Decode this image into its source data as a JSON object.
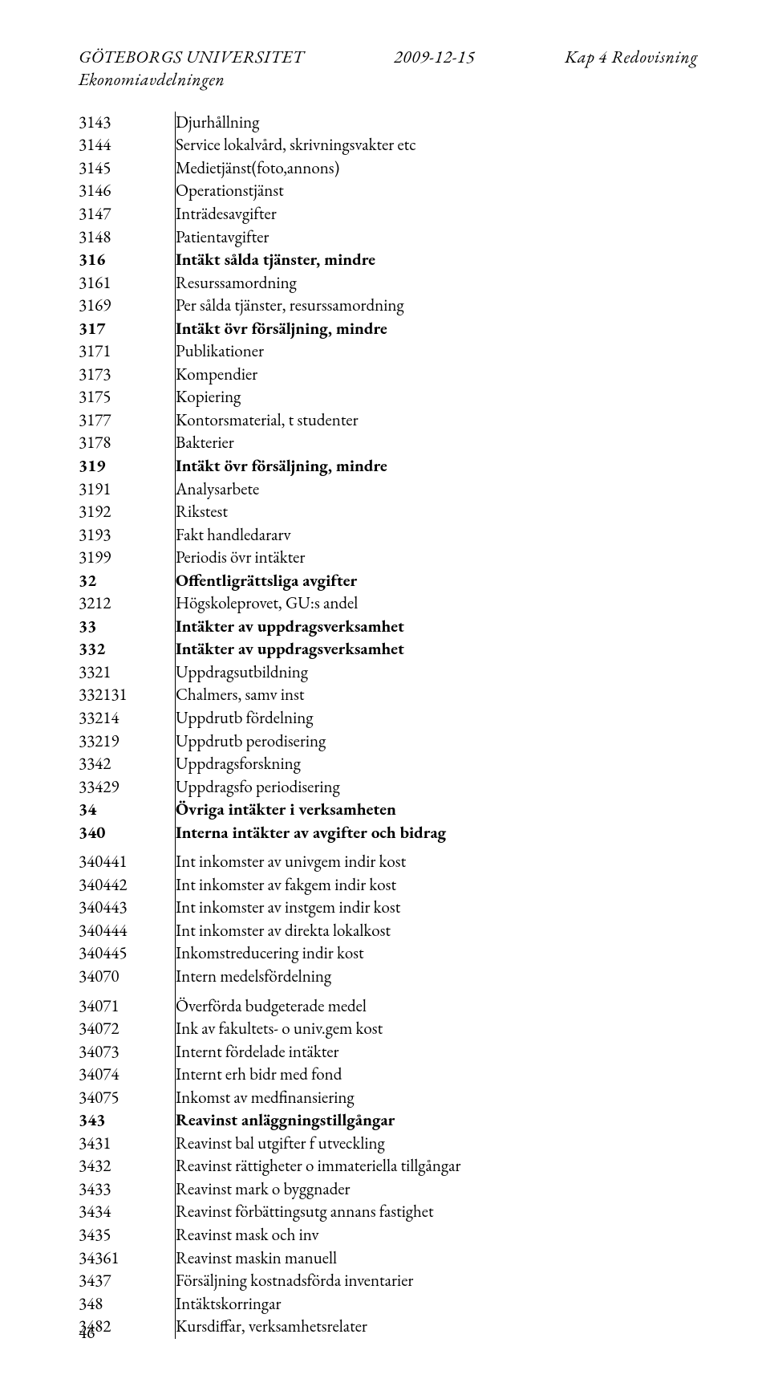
{
  "header": {
    "left_line1": "GÖTEBORGS UNIVERSITET",
    "left_line2": "Ekonomiavdelningen",
    "center": "2009-12-15",
    "right": "Kap 4 Redovisning"
  },
  "rows": [
    {
      "code": "3143",
      "label": "Djurhållning",
      "bold": false
    },
    {
      "code": "3144",
      "label": "Service lokalvård, skrivningsvakter etc",
      "bold": false
    },
    {
      "code": "3145",
      "label": "Medietjänst(foto,annons)",
      "bold": false
    },
    {
      "code": "3146",
      "label": "Operationstjänst",
      "bold": false
    },
    {
      "code": "3147",
      "label": "Inträdesavgifter",
      "bold": false
    },
    {
      "code": "3148",
      "label": "Patientavgifter",
      "bold": false
    },
    {
      "code": "316",
      "label": "Intäkt sålda tjänster, mindre",
      "bold": true
    },
    {
      "code": "3161",
      "label": "Resurssamordning",
      "bold": false
    },
    {
      "code": "3169",
      "label": "Per sålda tjänster, resurssamordning",
      "bold": false
    },
    {
      "code": "317",
      "label": "Intäkt övr försäljning, mindre",
      "bold": true
    },
    {
      "code": "3171",
      "label": "Publikationer",
      "bold": false
    },
    {
      "code": "3173",
      "label": "Kompendier",
      "bold": false
    },
    {
      "code": "3175",
      "label": "Kopiering",
      "bold": false
    },
    {
      "code": "3177",
      "label": "Kontorsmaterial, t studenter",
      "bold": false
    },
    {
      "code": "3178",
      "label": "Bakterier",
      "bold": false
    },
    {
      "code": "319",
      "label": "Intäkt övr försäljning, mindre",
      "bold": true
    },
    {
      "code": "3191",
      "label": "Analysarbete",
      "bold": false
    },
    {
      "code": "3192",
      "label": "Rikstest",
      "bold": false
    },
    {
      "code": "3193",
      "label": "Fakt handledararv",
      "bold": false
    },
    {
      "code": "3199",
      "label": "Periodis övr intäkter",
      "bold": false
    },
    {
      "code": "32",
      "label": "Offentligrättsliga avgifter",
      "bold": true
    },
    {
      "code": "3212",
      "label": "Högskoleprovet, GU:s andel",
      "bold": false
    },
    {
      "code": "33",
      "label": "Intäkter av uppdragsverksamhet",
      "bold": true
    },
    {
      "code": "332",
      "label": "Intäkter av uppdragsverksamhet",
      "bold": true
    },
    {
      "code": "3321",
      "label": "Uppdragsutbildning",
      "bold": false
    },
    {
      "code": "332131",
      "label": "Chalmers, samv inst",
      "bold": false
    },
    {
      "code": "33214",
      "label": "Uppdrutb fördelning",
      "bold": false
    },
    {
      "code": "33219",
      "label": "Uppdrutb perodisering",
      "bold": false
    },
    {
      "code": "3342",
      "label": "Uppdragsforskning",
      "bold": false
    },
    {
      "code": "33429",
      "label": "Uppdragsfo periodisering",
      "bold": false
    },
    {
      "code": "34",
      "label": "Övriga intäkter i verksamheten",
      "bold": true
    },
    {
      "code": "340",
      "label": "Interna intäkter av avgifter och bidrag",
      "bold": true,
      "gap_after": true
    },
    {
      "code": "340441",
      "label": "Int inkomster av univgem indir kost",
      "bold": false
    },
    {
      "code": "340442",
      "label": "Int inkomster av fakgem indir kost",
      "bold": false
    },
    {
      "code": "340443",
      "label": "Int inkomster av instgem indir kost",
      "bold": false
    },
    {
      "code": "340444",
      "label": "Int inkomster av direkta lokalkost",
      "bold": false
    },
    {
      "code": "340445",
      "label": "Inkomstreducering indir kost",
      "bold": false
    },
    {
      "code": "34070",
      "label": "Intern medelsfördelning",
      "bold": false,
      "gap_after": true
    },
    {
      "code": "34071",
      "label": "Överförda budgeterade medel",
      "bold": false
    },
    {
      "code": "34072",
      "label": "Ink av fakultets- o univ.gem kost",
      "bold": false
    },
    {
      "code": "34073",
      "label": "Internt fördelade intäkter",
      "bold": false
    },
    {
      "code": "34074",
      "label": "Internt erh bidr med fond",
      "bold": false
    },
    {
      "code": "34075",
      "label": "Inkomst av medfinansiering",
      "bold": false
    },
    {
      "code": "343",
      "label": "Reavinst anläggningstillgångar",
      "bold": true
    },
    {
      "code": "3431",
      "label": "Reavinst bal utgifter f utveckling",
      "bold": false
    },
    {
      "code": "3432",
      "label": "Reavinst rättigheter o immateriella tillgångar",
      "bold": false
    },
    {
      "code": "3433",
      "label": "Reavinst mark o byggnader",
      "bold": false
    },
    {
      "code": "3434",
      "label": "Reavinst förbättingsutg annans fastighet",
      "bold": false
    },
    {
      "code": "3435",
      "label": "Reavinst mask och inv",
      "bold": false
    },
    {
      "code": "34361",
      "label": "Reavinst maskin manuell",
      "bold": false
    },
    {
      "code": "3437",
      "label": "Försäljning kostnadsförda inventarier",
      "bold": false
    },
    {
      "code": "348",
      "label": "Intäktskorringar",
      "bold": false
    },
    {
      "code": "3482",
      "label": "Kursdiffar, verksamhetsrelater",
      "bold": false
    }
  ],
  "page_number": "46"
}
